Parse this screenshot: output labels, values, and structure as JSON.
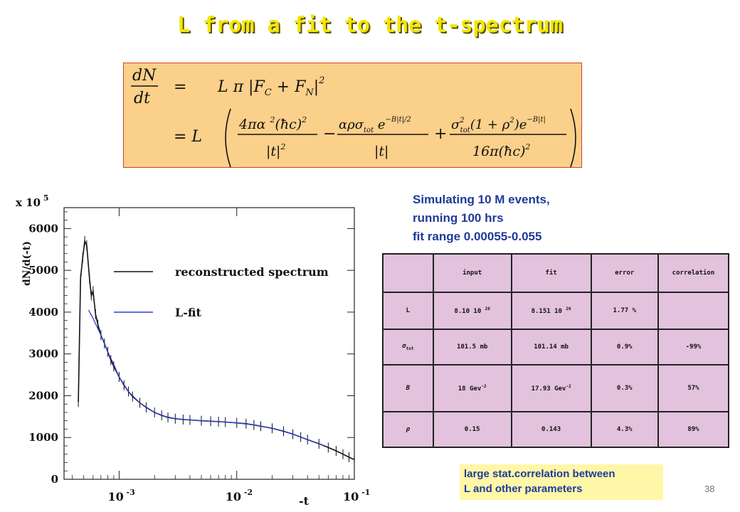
{
  "title": "L from a fit to the t-spectrum",
  "formula": {
    "lhs_num": "dN",
    "lhs_den": "dt",
    "line1_rhs": "L π |F",
    "line1_sub_c": "C",
    "line1_plus": " + F",
    "line1_sub_n": "N",
    "line1_close": "|",
    "line1_sq": "2",
    "line2_prefix": "= L"
  },
  "sim_text": [
    "Simulating 10 M events,",
    "running 100 hrs",
    "fit range 0.00055-0.055"
  ],
  "table": {
    "headers": [
      "",
      "input",
      "fit",
      "error",
      "correlation"
    ],
    "rows": [
      {
        "param": "L",
        "input": "8.10 10",
        "input_exp": "26",
        "fit": "8.151 10",
        "fit_exp": "26",
        "error": "1.77 %",
        "correlation": ""
      },
      {
        "param": "σ",
        "param_sub": "tot",
        "input": "101.5 mb",
        "fit": "101.14 mb",
        "error": "0.9%",
        "correlation": "-99%"
      },
      {
        "param": "B",
        "input": "18 Gev",
        "input_exp": "-2",
        "fit": "17.93 Gev",
        "fit_exp": "-2",
        "error": "0.3%",
        "correlation": "57%"
      },
      {
        "param": "ρ",
        "input": "0.15",
        "fit": "0.143",
        "error": "4.3%",
        "correlation": "89%"
      }
    ]
  },
  "note": [
    "large stat.correlation between",
    "L and other parameters"
  ],
  "page_number": "38",
  "chart_data": {
    "type": "line",
    "xscale": "log",
    "xlabel": "-t",
    "ylabel": "dN/d(-t)",
    "y_multiplier": "x 10",
    "y_multiplier_exp": "5",
    "xlim": [
      0.00034,
      0.1
    ],
    "ylim": [
      0,
      6500
    ],
    "x_ticks": [
      {
        "base": "10",
        "exp": "-3",
        "value": 0.001
      },
      {
        "base": "10",
        "exp": "-2",
        "value": 0.01
      },
      {
        "base": "10",
        "exp": "-1",
        "value": 0.1
      }
    ],
    "y_ticks": [
      "0",
      "1000",
      "2000",
      "3000",
      "4000",
      "5000",
      "6000"
    ],
    "y_tick_values": [
      0,
      1000,
      2000,
      3000,
      4000,
      5000,
      6000
    ],
    "legend": [
      {
        "label": "reconstructed spectrum",
        "color": "#111111"
      },
      {
        "label": "L-fit",
        "color": "#3040d0"
      }
    ],
    "series": [
      {
        "name": "reconstructed spectrum",
        "color": "#111111",
        "x": [
          0.00045,
          0.00047,
          0.00049,
          0.00051,
          0.00053,
          0.00056,
          0.00058,
          0.0006,
          0.00063,
          0.00066,
          0.0007,
          0.00075,
          0.0008,
          0.00085,
          0.0009,
          0.001,
          0.0011,
          0.0012,
          0.0013,
          0.0015,
          0.0017,
          0.002,
          0.0023,
          0.0026,
          0.003,
          0.0035,
          0.004,
          0.005,
          0.006,
          0.007,
          0.008,
          0.01,
          0.012,
          0.014,
          0.016,
          0.02,
          0.025,
          0.03,
          0.035,
          0.04,
          0.05,
          0.06,
          0.07,
          0.08,
          0.09,
          0.1
        ],
        "y": [
          1850,
          4800,
          5300,
          5700,
          5600,
          4800,
          4400,
          4500,
          3950,
          3700,
          3450,
          3250,
          3050,
          2850,
          2700,
          2450,
          2250,
          2100,
          1980,
          1830,
          1720,
          1600,
          1530,
          1480,
          1450,
          1430,
          1420,
          1400,
          1390,
          1380,
          1370,
          1350,
          1330,
          1300,
          1270,
          1220,
          1150,
          1080,
          1010,
          950,
          850,
          760,
          680,
          600,
          530,
          470
        ]
      },
      {
        "name": "L-fit",
        "color": "#3040d0",
        "x": [
          0.00055,
          0.0006,
          0.0007,
          0.0008,
          0.0009,
          0.001,
          0.0012,
          0.0015,
          0.002,
          0.0025,
          0.003,
          0.004,
          0.005,
          0.007,
          0.01,
          0.015,
          0.02,
          0.03,
          0.04,
          0.055
        ],
        "y": [
          4050,
          3850,
          3450,
          3050,
          2750,
          2450,
          2100,
          1830,
          1600,
          1500,
          1450,
          1420,
          1400,
          1380,
          1350,
          1290,
          1220,
          1080,
          950,
          800
        ]
      }
    ]
  }
}
